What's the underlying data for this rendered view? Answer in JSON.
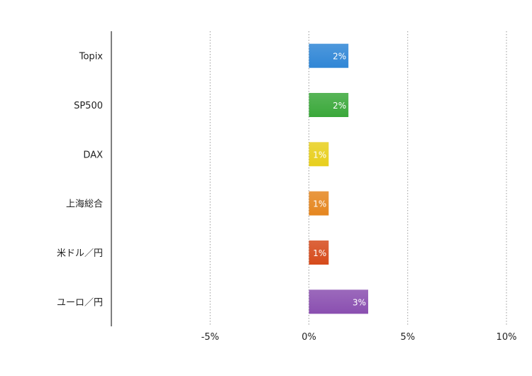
{
  "chart_data": {
    "type": "bar",
    "orientation": "horizontal",
    "categories": [
      "Topix",
      "SP500",
      "DAX",
      "上海総合",
      "米ドル／円",
      "ユーロ／円"
    ],
    "values": [
      2,
      2,
      1,
      1,
      1,
      3
    ],
    "data_labels": [
      "2%",
      "2%",
      "1%",
      "1%",
      "1%",
      "3%"
    ],
    "bar_colors": [
      "#2f86d6",
      "#3aa83a",
      "#e8cf1c",
      "#e5861f",
      "#d64a1b",
      "#8a4fb0"
    ],
    "xlim": [
      -10,
      10
    ],
    "xticks": [
      -5,
      0,
      5,
      10
    ],
    "xtick_labels": [
      "-5%",
      "0%",
      "5%",
      "10%"
    ],
    "grid": "vertical dotted",
    "title": "",
    "xlabel": "",
    "ylabel": ""
  }
}
